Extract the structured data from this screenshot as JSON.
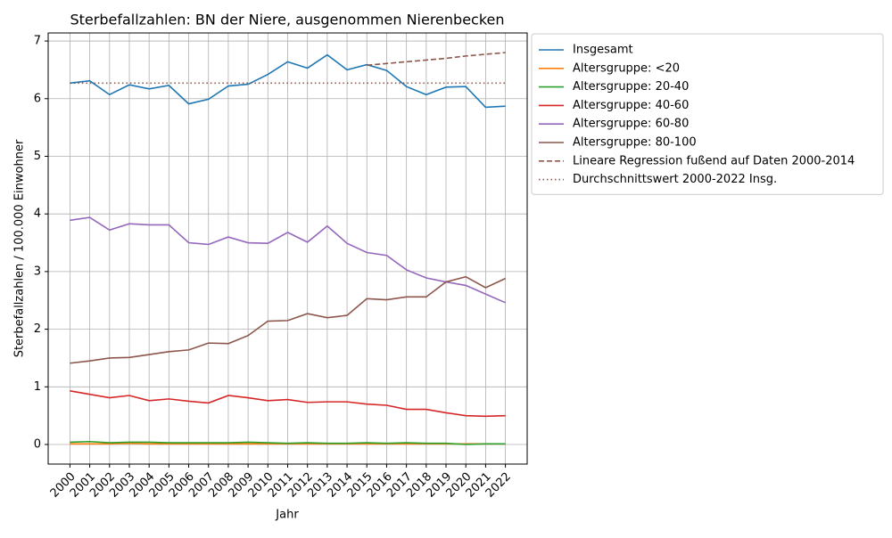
{
  "chart_data": {
    "type": "line",
    "title": "Sterbefallzahlen: BN der Niere, ausgenommen Nierenbecken",
    "xlabel": "Jahr",
    "ylabel": "Sterbefallzahlen / 100.000 Einwohner",
    "x": [
      2000,
      2001,
      2002,
      2003,
      2004,
      2005,
      2006,
      2007,
      2008,
      2009,
      2010,
      2011,
      2012,
      2013,
      2014,
      2015,
      2016,
      2017,
      2018,
      2019,
      2020,
      2021,
      2022
    ],
    "xlim": [
      1998.9,
      2023.1
    ],
    "xticks": [
      2000,
      2001,
      2002,
      2003,
      2004,
      2005,
      2006,
      2007,
      2008,
      2009,
      2010,
      2011,
      2012,
      2013,
      2014,
      2015,
      2016,
      2017,
      2018,
      2019,
      2020,
      2021,
      2022
    ],
    "ylim": [
      -0.34,
      7.14
    ],
    "yticks": [
      0,
      1,
      2,
      3,
      4,
      5,
      6,
      7
    ],
    "grid": true,
    "legend": "outside-upper-right",
    "series": [
      {
        "name": "Insgesamt",
        "color": "#1f77b4",
        "dash": "solid",
        "values": [
          6.27,
          6.31,
          6.07,
          6.24,
          6.17,
          6.23,
          5.91,
          5.99,
          6.22,
          6.25,
          6.42,
          6.64,
          6.53,
          6.76,
          6.5,
          6.59,
          6.49,
          6.21,
          6.07,
          6.2,
          6.21,
          5.85,
          5.87
        ]
      },
      {
        "name": "Altersgruppe: <20",
        "color": "#ff7f0e",
        "dash": "solid",
        "values": [
          0.01,
          0.01,
          0.01,
          0.02,
          0.01,
          0.01,
          0.01,
          0.01,
          0.01,
          0.01,
          0.01,
          0.01,
          0.01,
          0.01,
          0.01,
          0.01,
          0.01,
          0.01,
          0.01,
          0.01,
          0.01,
          0.01,
          0.01
        ]
      },
      {
        "name": "Altersgruppe: 20-40",
        "color": "#2ca02c",
        "dash": "solid",
        "values": [
          0.04,
          0.05,
          0.03,
          0.04,
          0.04,
          0.03,
          0.03,
          0.03,
          0.03,
          0.04,
          0.03,
          0.02,
          0.03,
          0.02,
          0.02,
          0.03,
          0.02,
          0.03,
          0.02,
          0.02,
          0.0,
          0.01,
          0.01
        ]
      },
      {
        "name": "Altersgruppe: 40-60",
        "color": "#d62728",
        "dash": "solid",
        "values": [
          0.93,
          0.87,
          0.81,
          0.85,
          0.76,
          0.79,
          0.75,
          0.72,
          0.85,
          0.81,
          0.76,
          0.78,
          0.73,
          0.74,
          0.74,
          0.7,
          0.68,
          0.61,
          0.61,
          0.55,
          0.5,
          0.49,
          0.5
        ]
      },
      {
        "name": "Altersgruppe: 60-80",
        "color": "#9467bd",
        "dash": "solid",
        "values": [
          3.89,
          3.94,
          3.72,
          3.83,
          3.81,
          3.81,
          3.5,
          3.47,
          3.6,
          3.5,
          3.49,
          3.68,
          3.51,
          3.79,
          3.49,
          3.33,
          3.28,
          3.03,
          2.89,
          2.82,
          2.76,
          2.61,
          2.46
        ]
      },
      {
        "name": "Altersgruppe: 80-100",
        "color": "#8c564b",
        "dash": "solid",
        "values": [
          1.41,
          1.45,
          1.5,
          1.51,
          1.56,
          1.61,
          1.64,
          1.76,
          1.75,
          1.89,
          2.14,
          2.15,
          2.27,
          2.2,
          2.24,
          2.53,
          2.51,
          2.56,
          2.56,
          2.82,
          2.91,
          2.72,
          2.88
        ]
      },
      {
        "name": "Lineare Regression fußend auf Daten 2000-2014",
        "color": "#8c564b",
        "dash": "dashed",
        "values": [
          null,
          null,
          null,
          null,
          null,
          null,
          null,
          null,
          null,
          null,
          null,
          null,
          null,
          null,
          null,
          6.58,
          6.61,
          6.64,
          6.67,
          6.7,
          6.74,
          6.77,
          6.8
        ]
      },
      {
        "name": "Durchschnittswert 2000-2022 Insg.",
        "color": "#8c564b",
        "dash": "dotted",
        "values": [
          6.27,
          6.27,
          6.27,
          6.27,
          6.27,
          6.27,
          6.27,
          6.27,
          6.27,
          6.27,
          6.27,
          6.27,
          6.27,
          6.27,
          6.27,
          6.27,
          6.27,
          6.27,
          6.27,
          6.27,
          6.27,
          6.27,
          6.27
        ]
      }
    ]
  }
}
